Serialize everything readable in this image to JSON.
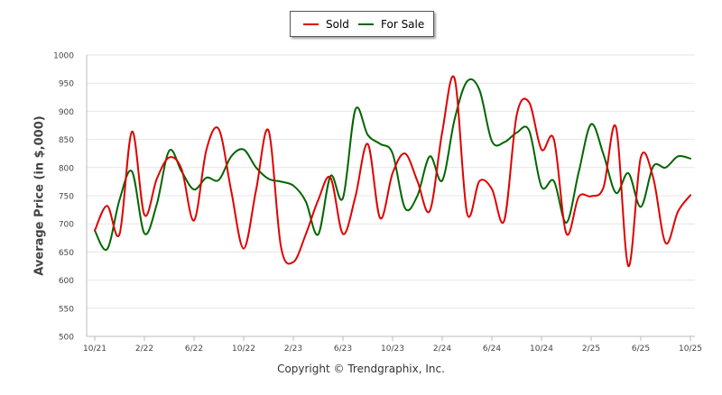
{
  "legend": {
    "sold_label": "Sold",
    "for_sale_label": "For Sale"
  },
  "colors": {
    "sold": "#e00000",
    "for_sale": "#006600",
    "grid": "#e6e6e6"
  },
  "footer": {
    "copyright": "Copyright © Trendgraphix, Inc."
  },
  "chart_data": {
    "type": "line",
    "title": "",
    "xlabel": "",
    "ylabel": "Average Price (in $,000)",
    "ylim": [
      500,
      1000
    ],
    "y_ticks": [
      500,
      550,
      600,
      650,
      700,
      750,
      800,
      850,
      900,
      950,
      1000
    ],
    "x_tick_labels": [
      "10/21",
      "2/22",
      "6/22",
      "10/22",
      "2/23",
      "6/23",
      "10/23",
      "2/24",
      "6/24",
      "10/24",
      "2/25",
      "6/25",
      "10/25"
    ],
    "x": [
      "10/21",
      "11/21",
      "12/21",
      "1/22",
      "2/22",
      "3/22",
      "4/22",
      "5/22",
      "6/22",
      "7/22",
      "8/22",
      "9/22",
      "10/22",
      "11/22",
      "12/22",
      "1/23",
      "2/23",
      "3/23",
      "4/23",
      "5/23",
      "6/23",
      "7/23",
      "8/23",
      "9/23",
      "10/23",
      "11/23",
      "12/23",
      "1/24",
      "2/24",
      "3/24",
      "4/24",
      "5/24",
      "6/24",
      "7/24",
      "8/24",
      "9/24",
      "10/24",
      "11/24",
      "12/24",
      "1/25",
      "2/25",
      "3/25",
      "4/25",
      "5/25",
      "6/25",
      "7/25",
      "8/25",
      "9/25",
      "10/25"
    ],
    "grid": true,
    "legend_position": "top-center",
    "series": [
      {
        "name": "Sold",
        "values": [
          688,
          732,
          682,
          864,
          716,
          780,
          818,
          797,
          706,
          832,
          868,
          758,
          656,
          760,
          866,
          660,
          632,
          681,
          742,
          782,
          682,
          748,
          842,
          710,
          790,
          825,
          776,
          723,
          863,
          958,
          719,
          776,
          762,
          706,
          893,
          916,
          832,
          850,
          683,
          748,
          749,
          765,
          872,
          625,
          818,
          782,
          666,
          722,
          751
        ]
      },
      {
        "name": "For Sale",
        "values": [
          688,
          655,
          743,
          793,
          683,
          735,
          830,
          793,
          761,
          782,
          778,
          820,
          832,
          800,
          780,
          775,
          768,
          740,
          681,
          785,
          746,
          903,
          858,
          842,
          825,
          728,
          750,
          820,
          777,
          886,
          953,
          938,
          847,
          845,
          862,
          866,
          766,
          776,
          702,
          792,
          877,
          823,
          755,
          790,
          730,
          802,
          800,
          820,
          816
        ]
      }
    ]
  }
}
